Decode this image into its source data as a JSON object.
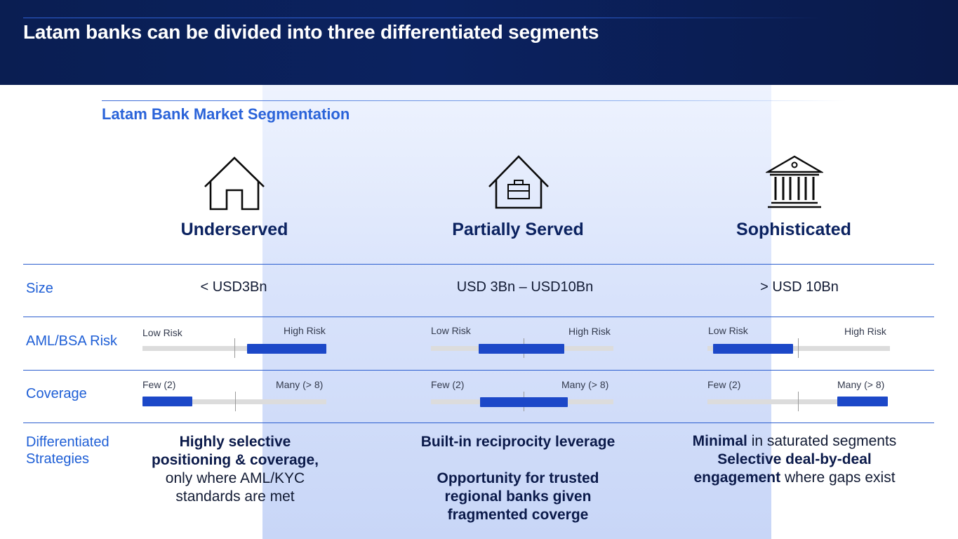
{
  "header": {
    "title": "Latam banks can be divided into three differentiated segments"
  },
  "subtitle": "Latam Bank Market Segmentation",
  "colors": {
    "navy": "#0b2260",
    "accent_blue": "#2a63d9",
    "bar_blue": "#1c48c8",
    "track_gray": "#dcdcdc"
  },
  "segments": [
    {
      "icon": "house-icon",
      "name": "Underserved",
      "size": "< USD3Bn"
    },
    {
      "icon": "house-briefcase-icon",
      "name": "Partially Served",
      "size": "USD 3Bn – USD10Bn"
    },
    {
      "icon": "bank-building-icon",
      "name": "Sophisticated",
      "size": "> USD 10Bn"
    }
  ],
  "rows": {
    "size": "Size",
    "aml": "AML/BSA Risk",
    "coverage": "Coverage",
    "strategies_line1": "Differentiated",
    "strategies_line2": "Strategies"
  },
  "scales": {
    "risk_low": "Low Risk",
    "risk_high": "High Risk",
    "coverage_low": "Few (2)",
    "coverage_high": "Many (> 8)"
  },
  "risk_levels": [
    {
      "from": 0.57,
      "to": 1.0
    },
    {
      "from": 0.26,
      "to": 0.73
    },
    {
      "from": 0.03,
      "to": 0.47
    }
  ],
  "coverage_levels": [
    {
      "from": 0.0,
      "to": 0.27
    },
    {
      "from": 0.27,
      "to": 0.75
    },
    {
      "from": 0.72,
      "to": 1.0
    }
  ],
  "strategies": {
    "underserved": {
      "line1": "Highly selective",
      "line2": "positioning & coverage,",
      "line3": "only where AML/KYC",
      "line4": "standards are met"
    },
    "partial": {
      "line1": "Built-in reciprocity leverage",
      "line2": "Opportunity for trusted",
      "line3": "regional banks given",
      "line4": "fragmented coverge"
    },
    "sophisticated": {
      "line1_bold": "Minimal",
      "line1_rest": " in saturated segments",
      "line2": "Selective  deal-by-deal",
      "line3_bold": "engagement",
      "line3_rest": " where gaps exist"
    }
  }
}
